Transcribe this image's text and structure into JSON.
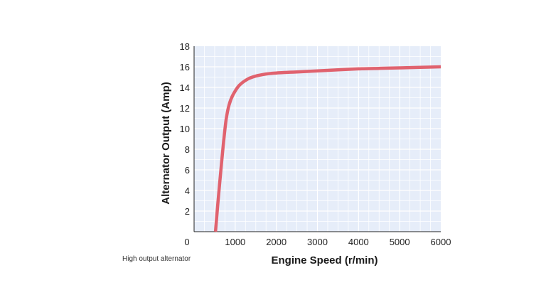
{
  "chart_data": {
    "type": "line",
    "title": "",
    "xlabel": "Engine Speed (r/min)",
    "ylabel": "Alternator Output (Amp)",
    "xlim": [
      0,
      6000
    ],
    "ylim": [
      0,
      18
    ],
    "xticks": [
      1000,
      2000,
      3000,
      4000,
      5000,
      6000
    ],
    "yticks": [
      2,
      4,
      6,
      8,
      10,
      12,
      14,
      16,
      18
    ],
    "origin_label": "0",
    "grid": true,
    "legend": "none",
    "series": [
      {
        "color": "#e0626e",
        "x": [
          520,
          580,
          650,
          720,
          780,
          850,
          950,
          1100,
          1300,
          1500,
          1750,
          2000,
          2500,
          3000,
          3500,
          4000,
          4500,
          5000,
          5500,
          6000
        ],
        "y": [
          0,
          2.8,
          5.9,
          8.8,
          10.9,
          12.3,
          13.3,
          14.2,
          14.8,
          15.1,
          15.3,
          15.4,
          15.5,
          15.6,
          15.7,
          15.8,
          15.85,
          15.9,
          15.95,
          16.0
        ]
      }
    ]
  },
  "caption": "High output alternator",
  "colors": {
    "plot_background": "#e6edf9",
    "grid": "#ffffff",
    "axis": "#222222"
  }
}
